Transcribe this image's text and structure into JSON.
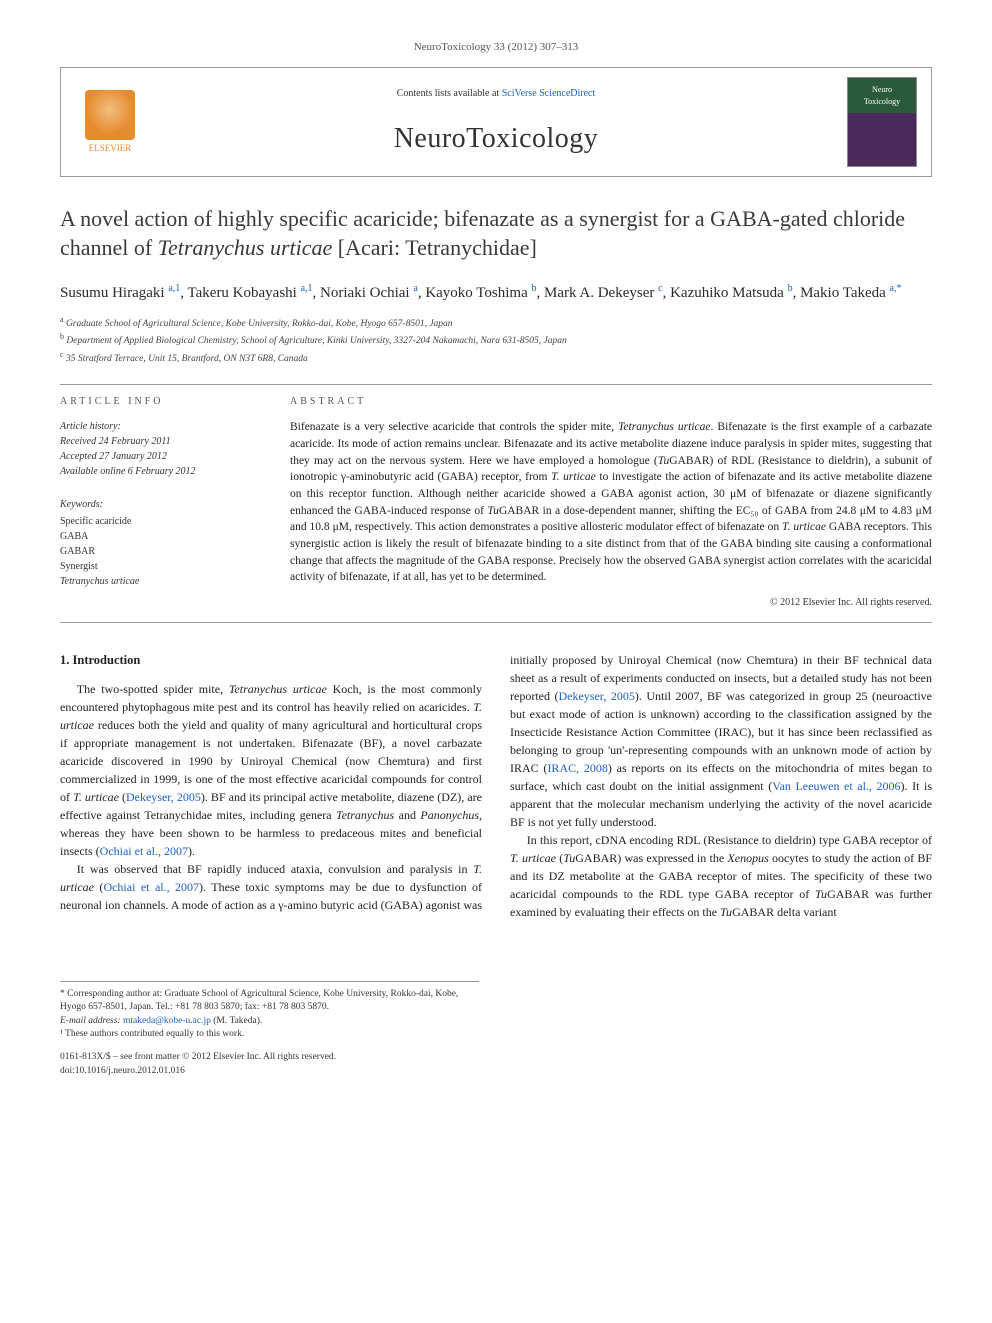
{
  "journal_ref": "NeuroToxicology 33 (2012) 307–313",
  "header": {
    "contents_prefix": "Contents lists available at ",
    "contents_link": "SciVerse ScienceDirect",
    "journal_name": "NeuroToxicology",
    "publisher_logo_text": "ELSEVIER",
    "cover_text_top": "Neuro",
    "cover_text_bottom": "Toxicology"
  },
  "title_parts": {
    "pre": "A novel action of highly specific acaricide; bifenazate as a synergist for a GABA-gated chloride channel of ",
    "ital": "Tetranychus urticae",
    "post": " [Acari: Tetranychidae]"
  },
  "authors_html": "Susumu Hiragaki <sup>a,1</sup>, Takeru Kobayashi <sup>a,1</sup>, Noriaki Ochiai <sup>a</sup>, Kayoko Toshima <sup>b</sup>, Mark A. Dekeyser <sup>c</sup>, Kazuhiko Matsuda <sup>b</sup>, Makio Takeda <sup>a,*</sup>",
  "affiliations": [
    {
      "sup": "a",
      "text": "Graduate School of Agricultural Science, Kobe University, Rokko-dai, Kobe, Hyogo 657-8501, Japan"
    },
    {
      "sup": "b",
      "text": "Department of Applied Biological Chemistry, School of Agriculture, Kinki University, 3327-204 Nakamachi, Nara 631-8505, Japan"
    },
    {
      "sup": "c",
      "text": "35 Stratford Terrace, Unit 15, Brantford, ON N3T 6R8, Canada"
    }
  ],
  "article_info": {
    "label": "ARTICLE INFO",
    "history_hdr": "Article history:",
    "received": "Received 24 February 2011",
    "accepted": "Accepted 27 January 2012",
    "online": "Available online 6 February 2012",
    "keywords_hdr": "Keywords:",
    "keywords": [
      "Specific acaricide",
      "GABA",
      "GABAR",
      "Synergist"
    ],
    "keyword_ital": "Tetranychus urticae"
  },
  "abstract": {
    "label": "ABSTRACT",
    "text_parts": [
      {
        "t": "Bifenazate is a very selective acaricide that controls the spider mite, "
      },
      {
        "t": "Tetranychus urticae",
        "i": true
      },
      {
        "t": ". Bifenazate is the first example of a carbazate acaricide. Its mode of action remains unclear. Bifenazate and its active metabolite diazene induce paralysis in spider mites, suggesting that they may act on the nervous system. Here we have employed a homologue ("
      },
      {
        "t": "Tu",
        "i": true
      },
      {
        "t": "GABAR) of RDL (Resistance to dieldrin), a subunit of ionotropic γ-aminobutyric acid (GABA) receptor, from "
      },
      {
        "t": "T. urticae",
        "i": true
      },
      {
        "t": " to investigate the action of bifenazate and its active metabolite diazene on this receptor function. Although neither acaricide showed a GABA agonist action, 30 μM of bifenazate or diazene significantly enhanced the GABA-induced response of "
      },
      {
        "t": "Tu",
        "i": true
      },
      {
        "t": "GABAR in a dose-dependent manner, shifting the EC₅₀ of GABA from 24.8 μM to 4.83 μM and 10.8 μM, respectively. This action demonstrates a positive allosteric modulator effect of bifenazate on "
      },
      {
        "t": "T. urticae",
        "i": true
      },
      {
        "t": " GABA receptors. This synergistic action is likely the result of bifenazate binding to a site distinct from that of the GABA binding site causing a conformational change that affects the magnitude of the GABA response. Precisely how the observed GABA synergist action correlates with the acaricidal activity of bifenazate, if at all, has yet to be determined."
      }
    ],
    "copyright": "© 2012 Elsevier Inc. All rights reserved."
  },
  "body": {
    "section_heading": "1. Introduction",
    "p1": "The two-spotted spider mite, <em>Tetranychus urticae</em> Koch, is the most commonly encountered phytophagous mite pest and its control has heavily relied on acaricides. <em>T. urticae</em> reduces both the yield and quality of many agricultural and horticultural crops if appropriate management is not undertaken. Bifenazate (BF), a novel carbazate acaricide discovered in 1990 by Uniroyal Chemical (now Chemtura) and first commercialized in 1999, is one of the most effective acaricidal compounds for control of <em>T. urticae</em> (<span class='cite'>Dekeyser, 2005</span>). BF and its principal active metabolite, diazene (DZ), are effective against Tetranychidae mites, including genera <em>Tetranychus</em> and <em>Panonychus</em>, whereas they have been shown to be harmless to predaceous mites and beneficial insects (<span class='cite'>Ochiai et al., 2007</span>).",
    "p2": "It was observed that BF rapidly induced ataxia, convulsion and paralysis in <em>T. urticae</em> (<span class='cite'>Ochiai et al., 2007</span>). These toxic symptoms may be due to dysfunction of neuronal ion channels. A mode of action as a γ-amino butyric acid (GABA) agonist was initially proposed by Uniroyal Chemical (now Chemtura) in their BF technical data sheet as a result of experiments conducted on insects, but a detailed study has not been reported (<span class='cite'>Dekeyser, 2005</span>). Until 2007, BF was categorized in group 25 (neuroactive but exact mode of action is unknown) according to the classification assigned by the Insecticide Resistance Action Committee (IRAC), but it has since been reclassified as belonging to group 'un'-representing compounds with an unknown mode of action by IRAC (<span class='cite'>IRAC, 2008</span>) as reports on its effects on the mitochondria of mites began to surface, which cast doubt on the initial assignment (<span class='cite'>Van Leeuwen et al., 2006</span>). It is apparent that the molecular mechanism underlying the activity of the novel acaricide BF is not yet fully understood.",
    "p3": "In this report, cDNA encoding RDL (Resistance to dieldrin) type GABA receptor of <em>T. urticae</em> (<em>Tu</em>GABAR) was expressed in the <em>Xenopus</em> oocytes to study the action of BF and its DZ metabolite at the GABA receptor of mites. The specificity of these two acaricidal compounds to the RDL type GABA receptor of <em>Tu</em>GABAR was further examined by evaluating their effects on the <em>Tu</em>GABAR delta variant"
  },
  "footnotes": {
    "corresponding": "* Corresponding author at: Graduate School of Agricultural Science, Kobe University, Rokko-dai, Kobe, Hyogo 657-8501, Japan. Tel.: +81 78 803 5870; fax: +81 78 803 5870.",
    "email_label": "E-mail address:",
    "email": "mtakeda@kobe-u.ac.jp",
    "email_author": " (M. Takeda).",
    "equal": "¹ These authors contributed equally to this work."
  },
  "doi": {
    "line1": "0161-813X/$ – see front matter © 2012 Elsevier Inc. All rights reserved.",
    "line2": "doi:10.1016/j.neuro.2012.01.016"
  }
}
